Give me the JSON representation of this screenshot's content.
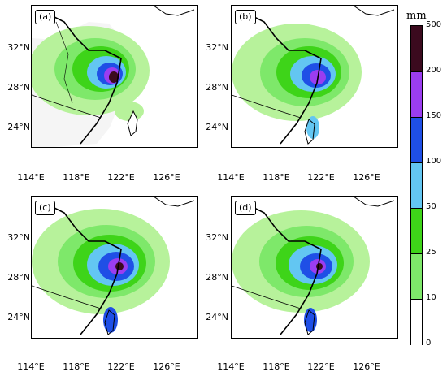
{
  "panels": [
    {
      "id": "a",
      "label": "(a)"
    },
    {
      "id": "b",
      "label": "(b)"
    },
    {
      "id": "c",
      "label": "(c)"
    },
    {
      "id": "d",
      "label": "(d)"
    }
  ],
  "axes": {
    "lat_labels": [
      "32°N",
      "28°N",
      "24°N"
    ],
    "lon_labels": [
      "114°E",
      "118°E",
      "122°E",
      "126°E"
    ]
  },
  "colorbar": {
    "title": "mm",
    "ticks": [
      "500",
      "200",
      "150",
      "100",
      "50",
      "25",
      "10",
      "0"
    ],
    "colors": [
      "#3b0a1e",
      "#9b3df0",
      "#1f4fe6",
      "#63c6f2",
      "#3ed419",
      "#7ee86a",
      "#b7f29b",
      "#ffffff"
    ]
  }
}
